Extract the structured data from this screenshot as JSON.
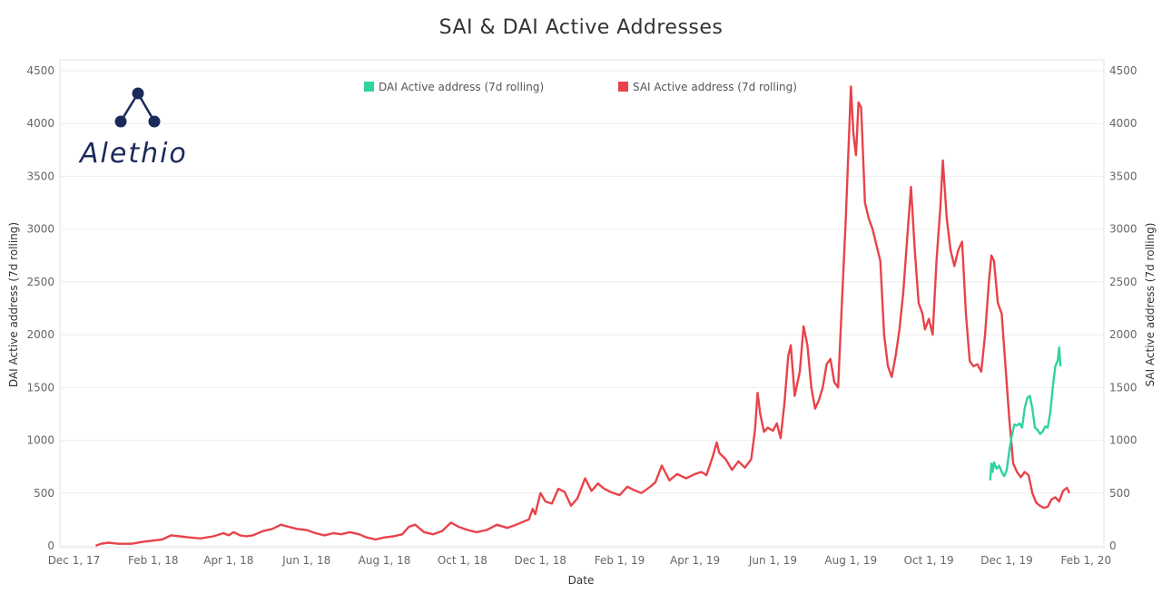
{
  "colors": {
    "dai": "#2fd3a0",
    "sai": "#e8434a",
    "grid": "#eeeeee",
    "logo": "#1c2a5a"
  },
  "logo": {
    "text": "Alethio",
    "icon": "alethio-node-icon"
  },
  "chart_data": {
    "type": "line",
    "title": "SAI & DAI Active Addresses",
    "xlabel": "Date",
    "ylabel_left": "DAI Active address (7d rolling)",
    "ylabel_right": "SAI Active address (7d rolling)",
    "ylim": [
      0,
      4500
    ],
    "yticks": [
      0,
      500,
      1000,
      1500,
      2000,
      2500,
      3000,
      3500,
      4000,
      4500
    ],
    "xlim": [
      "2017-11-20",
      "2020-02-15"
    ],
    "xticks": [
      {
        "date": "2017-12-01",
        "label": "Dec 1, 17"
      },
      {
        "date": "2018-02-01",
        "label": "Feb 1, 18"
      },
      {
        "date": "2018-04-01",
        "label": "Apr 1, 18"
      },
      {
        "date": "2018-06-01",
        "label": "Jun 1, 18"
      },
      {
        "date": "2018-08-01",
        "label": "Aug 1, 18"
      },
      {
        "date": "2018-10-01",
        "label": "Oct 1, 18"
      },
      {
        "date": "2018-12-01",
        "label": "Dec 1, 18"
      },
      {
        "date": "2019-02-01",
        "label": "Feb 1, 19"
      },
      {
        "date": "2019-04-01",
        "label": "Apr 1, 19"
      },
      {
        "date": "2019-06-01",
        "label": "Jun 1, 19"
      },
      {
        "date": "2019-08-01",
        "label": "Aug 1, 19"
      },
      {
        "date": "2019-10-01",
        "label": "Oct 1, 19"
      },
      {
        "date": "2019-12-01",
        "label": "Dec 1, 19"
      },
      {
        "date": "2020-02-01",
        "label": "Feb 1, 20"
      }
    ],
    "legend_position": "top",
    "series": [
      {
        "name": "DAI Active address (7d rolling)",
        "color": "#2fd3a0",
        "axis": "left",
        "points": [
          [
            "2019-11-18",
            620
          ],
          [
            "2019-11-19",
            780
          ],
          [
            "2019-11-20",
            700
          ],
          [
            "2019-11-21",
            790
          ],
          [
            "2019-11-23",
            730
          ],
          [
            "2019-11-25",
            760
          ],
          [
            "2019-11-27",
            700
          ],
          [
            "2019-11-29",
            660
          ],
          [
            "2019-12-01",
            720
          ],
          [
            "2019-12-03",
            900
          ],
          [
            "2019-12-05",
            1050
          ],
          [
            "2019-12-07",
            1150
          ],
          [
            "2019-12-09",
            1140
          ],
          [
            "2019-12-11",
            1160
          ],
          [
            "2019-12-13",
            1120
          ],
          [
            "2019-12-15",
            1300
          ],
          [
            "2019-12-17",
            1400
          ],
          [
            "2019-12-19",
            1420
          ],
          [
            "2019-12-21",
            1300
          ],
          [
            "2019-12-23",
            1120
          ],
          [
            "2019-12-25",
            1100
          ],
          [
            "2019-12-27",
            1060
          ],
          [
            "2019-12-29",
            1080
          ],
          [
            "2019-12-31",
            1130
          ],
          [
            "2020-01-02",
            1120
          ],
          [
            "2020-01-04",
            1260
          ],
          [
            "2020-01-06",
            1500
          ],
          [
            "2020-01-08",
            1700
          ],
          [
            "2020-01-10",
            1760
          ],
          [
            "2020-01-11",
            1880
          ],
          [
            "2020-01-12",
            1700
          ]
        ]
      },
      {
        "name": "SAI Active address (7d rolling)",
        "color": "#e8434a",
        "axis": "right",
        "points": [
          [
            "2017-12-18",
            0
          ],
          [
            "2017-12-22",
            20
          ],
          [
            "2017-12-28",
            30
          ],
          [
            "2018-01-05",
            20
          ],
          [
            "2018-01-15",
            20
          ],
          [
            "2018-01-25",
            40
          ],
          [
            "2018-02-01",
            50
          ],
          [
            "2018-02-08",
            60
          ],
          [
            "2018-02-15",
            100
          ],
          [
            "2018-02-22",
            90
          ],
          [
            "2018-03-01",
            80
          ],
          [
            "2018-03-10",
            70
          ],
          [
            "2018-03-20",
            90
          ],
          [
            "2018-03-28",
            120
          ],
          [
            "2018-04-01",
            100
          ],
          [
            "2018-04-05",
            130
          ],
          [
            "2018-04-10",
            100
          ],
          [
            "2018-04-15",
            90
          ],
          [
            "2018-04-20",
            100
          ],
          [
            "2018-04-28",
            140
          ],
          [
            "2018-05-05",
            160
          ],
          [
            "2018-05-12",
            200
          ],
          [
            "2018-05-18",
            180
          ],
          [
            "2018-05-25",
            160
          ],
          [
            "2018-06-01",
            150
          ],
          [
            "2018-06-08",
            120
          ],
          [
            "2018-06-15",
            100
          ],
          [
            "2018-06-22",
            120
          ],
          [
            "2018-06-28",
            110
          ],
          [
            "2018-07-05",
            130
          ],
          [
            "2018-07-12",
            110
          ],
          [
            "2018-07-18",
            80
          ],
          [
            "2018-07-25",
            60
          ],
          [
            "2018-08-01",
            80
          ],
          [
            "2018-08-08",
            90
          ],
          [
            "2018-08-15",
            110
          ],
          [
            "2018-08-20",
            180
          ],
          [
            "2018-08-25",
            200
          ],
          [
            "2018-09-01",
            130
          ],
          [
            "2018-09-08",
            110
          ],
          [
            "2018-09-15",
            140
          ],
          [
            "2018-09-22",
            220
          ],
          [
            "2018-09-28",
            180
          ],
          [
            "2018-10-05",
            150
          ],
          [
            "2018-10-12",
            130
          ],
          [
            "2018-10-20",
            150
          ],
          [
            "2018-10-28",
            200
          ],
          [
            "2018-11-05",
            170
          ],
          [
            "2018-11-12",
            200
          ],
          [
            "2018-11-18",
            230
          ],
          [
            "2018-11-22",
            250
          ],
          [
            "2018-11-25",
            350
          ],
          [
            "2018-11-27",
            300
          ],
          [
            "2018-12-01",
            500
          ],
          [
            "2018-12-05",
            420
          ],
          [
            "2018-12-10",
            400
          ],
          [
            "2018-12-15",
            540
          ],
          [
            "2018-12-20",
            510
          ],
          [
            "2018-12-25",
            380
          ],
          [
            "2018-12-30",
            450
          ],
          [
            "2019-01-05",
            640
          ],
          [
            "2019-01-10",
            520
          ],
          [
            "2019-01-15",
            590
          ],
          [
            "2019-01-20",
            540
          ],
          [
            "2019-01-25",
            510
          ],
          [
            "2019-02-01",
            480
          ],
          [
            "2019-02-07",
            560
          ],
          [
            "2019-02-12",
            530
          ],
          [
            "2019-02-18",
            500
          ],
          [
            "2019-02-25",
            560
          ],
          [
            "2019-03-01",
            600
          ],
          [
            "2019-03-06",
            760
          ],
          [
            "2019-03-12",
            620
          ],
          [
            "2019-03-18",
            680
          ],
          [
            "2019-03-25",
            640
          ],
          [
            "2019-04-01",
            680
          ],
          [
            "2019-04-06",
            700
          ],
          [
            "2019-04-10",
            670
          ],
          [
            "2019-04-15",
            850
          ],
          [
            "2019-04-18",
            980
          ],
          [
            "2019-04-20",
            880
          ],
          [
            "2019-04-25",
            820
          ],
          [
            "2019-04-30",
            720
          ],
          [
            "2019-05-05",
            800
          ],
          [
            "2019-05-10",
            740
          ],
          [
            "2019-05-15",
            820
          ],
          [
            "2019-05-18",
            1100
          ],
          [
            "2019-05-20",
            1450
          ],
          [
            "2019-05-22",
            1250
          ],
          [
            "2019-05-25",
            1080
          ],
          [
            "2019-05-28",
            1120
          ],
          [
            "2019-06-01",
            1090
          ],
          [
            "2019-06-04",
            1160
          ],
          [
            "2019-06-07",
            1020
          ],
          [
            "2019-06-10",
            1350
          ],
          [
            "2019-06-13",
            1800
          ],
          [
            "2019-06-15",
            1900
          ],
          [
            "2019-06-18",
            1420
          ],
          [
            "2019-06-22",
            1650
          ],
          [
            "2019-06-25",
            2080
          ],
          [
            "2019-06-28",
            1900
          ],
          [
            "2019-07-01",
            1500
          ],
          [
            "2019-07-04",
            1300
          ],
          [
            "2019-07-07",
            1380
          ],
          [
            "2019-07-10",
            1500
          ],
          [
            "2019-07-13",
            1720
          ],
          [
            "2019-07-16",
            1770
          ],
          [
            "2019-07-19",
            1550
          ],
          [
            "2019-07-22",
            1500
          ],
          [
            "2019-07-25",
            2300
          ],
          [
            "2019-07-28",
            3100
          ],
          [
            "2019-08-01",
            4350
          ],
          [
            "2019-08-03",
            3900
          ],
          [
            "2019-08-05",
            3700
          ],
          [
            "2019-08-07",
            4200
          ],
          [
            "2019-08-09",
            4150
          ],
          [
            "2019-08-12",
            3250
          ],
          [
            "2019-08-15",
            3100
          ],
          [
            "2019-08-18",
            3000
          ],
          [
            "2019-08-21",
            2850
          ],
          [
            "2019-08-24",
            2700
          ],
          [
            "2019-08-27",
            2000
          ],
          [
            "2019-08-30",
            1700
          ],
          [
            "2019-09-02",
            1600
          ],
          [
            "2019-09-05",
            1800
          ],
          [
            "2019-09-08",
            2050
          ],
          [
            "2019-09-11",
            2400
          ],
          [
            "2019-09-14",
            2900
          ],
          [
            "2019-09-17",
            3400
          ],
          [
            "2019-09-20",
            2800
          ],
          [
            "2019-09-23",
            2300
          ],
          [
            "2019-09-26",
            2200
          ],
          [
            "2019-09-28",
            2050
          ],
          [
            "2019-10-01",
            2150
          ],
          [
            "2019-10-04",
            2000
          ],
          [
            "2019-10-07",
            2700
          ],
          [
            "2019-10-10",
            3200
          ],
          [
            "2019-10-12",
            3650
          ],
          [
            "2019-10-15",
            3100
          ],
          [
            "2019-10-18",
            2800
          ],
          [
            "2019-10-21",
            2650
          ],
          [
            "2019-10-24",
            2800
          ],
          [
            "2019-10-27",
            2880
          ],
          [
            "2019-10-30",
            2200
          ],
          [
            "2019-11-02",
            1750
          ],
          [
            "2019-11-05",
            1700
          ],
          [
            "2019-11-08",
            1720
          ],
          [
            "2019-11-11",
            1650
          ],
          [
            "2019-11-14",
            2000
          ],
          [
            "2019-11-17",
            2500
          ],
          [
            "2019-11-19",
            2750
          ],
          [
            "2019-11-21",
            2700
          ],
          [
            "2019-11-24",
            2300
          ],
          [
            "2019-11-27",
            2200
          ],
          [
            "2019-11-30",
            1700
          ],
          [
            "2019-12-03",
            1200
          ],
          [
            "2019-12-06",
            780
          ],
          [
            "2019-12-09",
            700
          ],
          [
            "2019-12-12",
            650
          ],
          [
            "2019-12-15",
            700
          ],
          [
            "2019-12-18",
            670
          ],
          [
            "2019-12-21",
            500
          ],
          [
            "2019-12-24",
            410
          ],
          [
            "2019-12-27",
            380
          ],
          [
            "2019-12-30",
            360
          ],
          [
            "2020-01-02",
            370
          ],
          [
            "2020-01-05",
            440
          ],
          [
            "2020-01-08",
            460
          ],
          [
            "2020-01-11",
            420
          ],
          [
            "2020-01-14",
            520
          ],
          [
            "2020-01-17",
            550
          ],
          [
            "2020-01-19",
            500
          ]
        ]
      }
    ]
  }
}
